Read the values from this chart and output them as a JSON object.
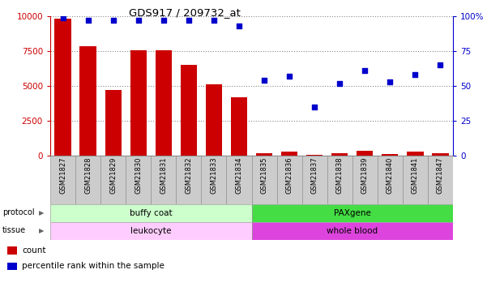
{
  "title": "GDS917 / 209732_at",
  "samples": [
    "GSM21827",
    "GSM21828",
    "GSM21829",
    "GSM21830",
    "GSM21831",
    "GSM21832",
    "GSM21833",
    "GSM21834",
    "GSM21835",
    "GSM21836",
    "GSM21837",
    "GSM21838",
    "GSM21839",
    "GSM21840",
    "GSM21841",
    "GSM21847"
  ],
  "counts": [
    9800,
    7850,
    4700,
    7550,
    7550,
    6500,
    5100,
    4200,
    150,
    300,
    50,
    150,
    350,
    100,
    300,
    200
  ],
  "percentile_ranks": [
    99,
    97,
    97,
    97,
    97,
    97,
    97,
    93,
    54,
    57,
    35,
    52,
    61,
    53,
    58,
    65
  ],
  "bar_color": "#cc0000",
  "scatter_color": "#0000cc",
  "ylim_left": [
    0,
    10000
  ],
  "ylim_right": [
    0,
    100
  ],
  "yticks_left": [
    0,
    2500,
    5000,
    7500,
    10000
  ],
  "yticks_right": [
    0,
    25,
    50,
    75,
    100
  ],
  "ytick_labels_left": [
    "0",
    "2500",
    "5000",
    "7500",
    "10000"
  ],
  "ytick_labels_right": [
    "0",
    "25",
    "50",
    "75",
    "100%"
  ],
  "protocol_labels": [
    {
      "text": "buffy coat",
      "start": 0,
      "end": 8,
      "color": "#ccffcc"
    },
    {
      "text": "PAXgene",
      "start": 8,
      "end": 16,
      "color": "#44dd44"
    }
  ],
  "tissue_labels": [
    {
      "text": "leukocyte",
      "start": 0,
      "end": 8,
      "color": "#ffccff"
    },
    {
      "text": "whole blood",
      "start": 8,
      "end": 16,
      "color": "#dd44dd"
    }
  ],
  "grid_color": "#888888",
  "bg_color": "#ffffff",
  "tick_label_bg": "#cccccc",
  "legend_count_color": "#cc0000",
  "legend_pct_color": "#0000cc"
}
